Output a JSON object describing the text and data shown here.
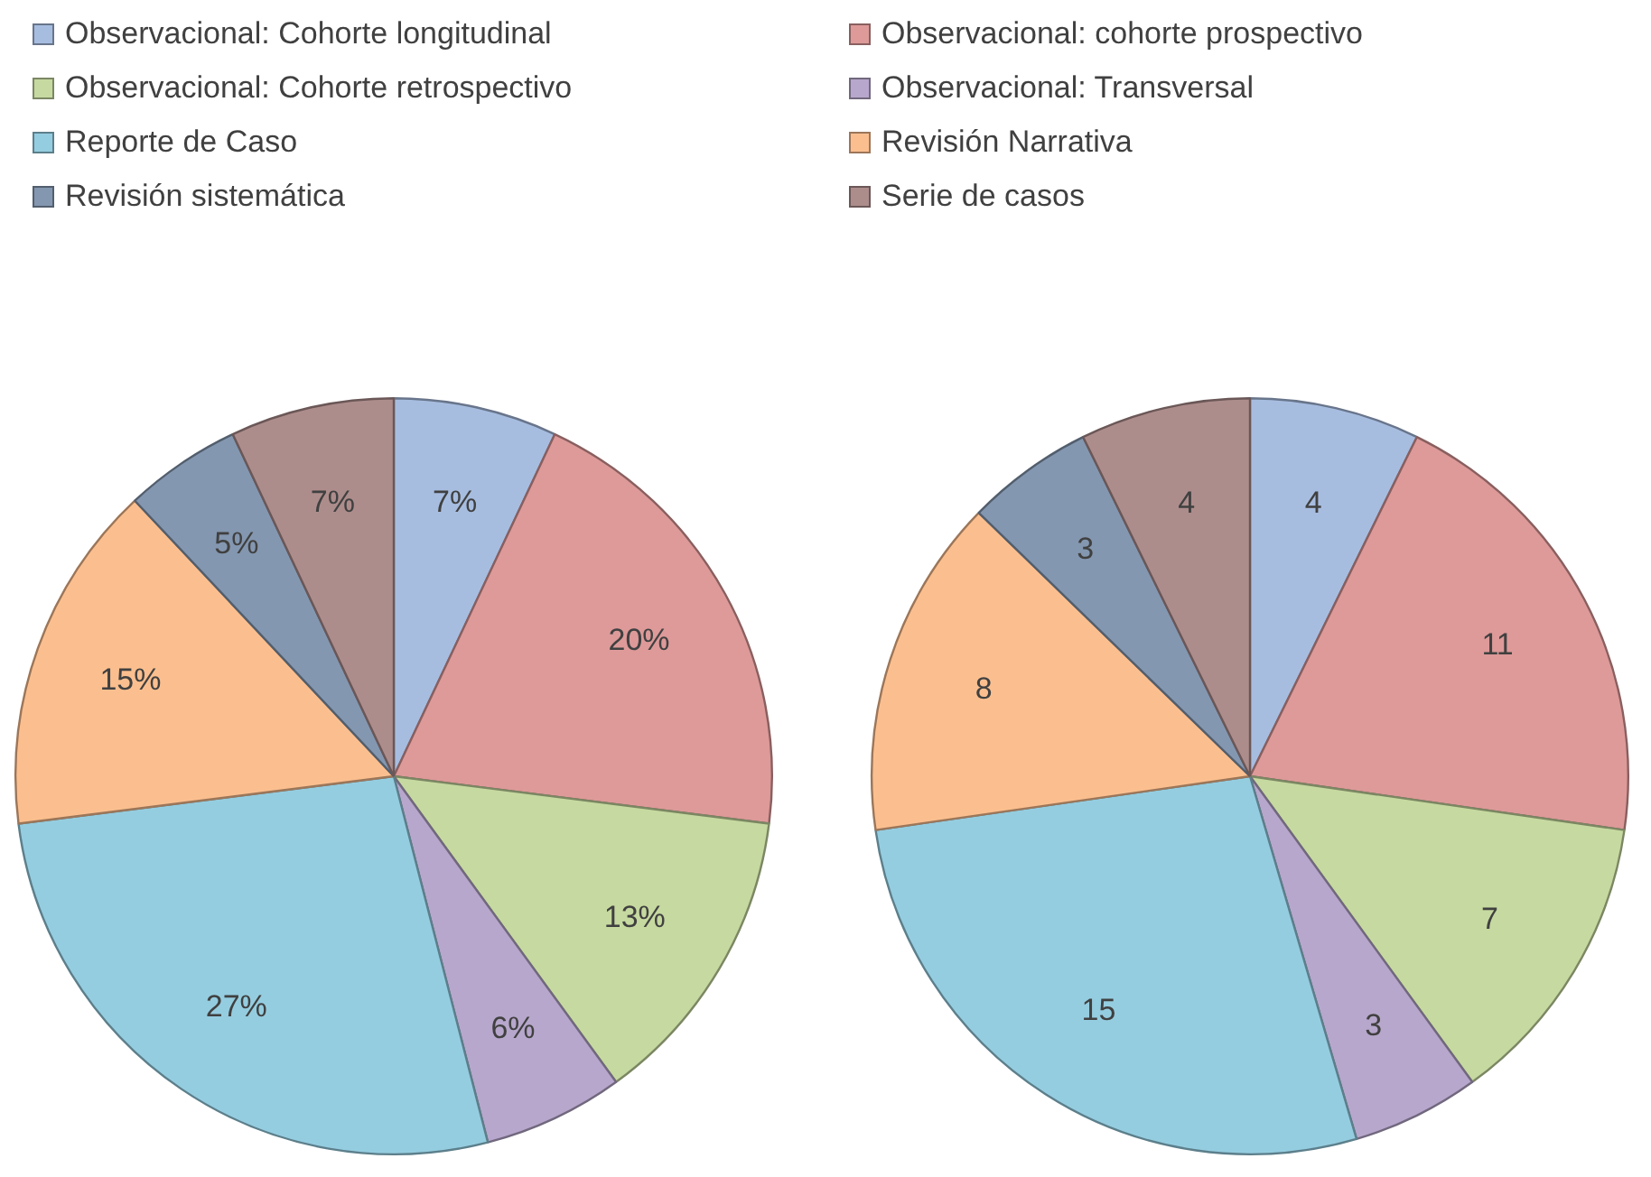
{
  "chart_data": [
    {
      "type": "pie",
      "legend": "top",
      "categories": [
        "Observacional: Cohorte longitudinal",
        "Observacional: cohorte prospectivo",
        "Observacional: Cohorte retrospectivo",
        "Observacional: Transversal",
        "Reporte de Caso",
        "Revisión Narrativa",
        "Revisión sistemática",
        "Serie de casos"
      ],
      "values": [
        7,
        20,
        13,
        6,
        27,
        15,
        5,
        7
      ],
      "colors": [
        "#a7bde0",
        "#dd9a99",
        "#c6d9a0",
        "#b7a7cc",
        "#95cde0",
        "#fbbf8f",
        "#8497b0",
        "#ad8d8c"
      ],
      "value_labels": [
        "7%",
        "20%",
        "13%",
        "6%",
        "27%",
        "15%",
        "5%",
        "7%"
      ]
    },
    {
      "type": "pie",
      "categories": [
        null,
        null,
        null,
        null,
        null,
        null,
        null,
        null
      ],
      "values": [
        4,
        11,
        7,
        3,
        15,
        8,
        3,
        4
      ],
      "colors": [
        "#a7bde0",
        "#dd9a99",
        "#c6d9a0",
        "#b7a7cc",
        "#95cde0",
        "#fbbf8f",
        "#8497b0",
        "#ad8d8c"
      ],
      "data_labels": true
    }
  ]
}
